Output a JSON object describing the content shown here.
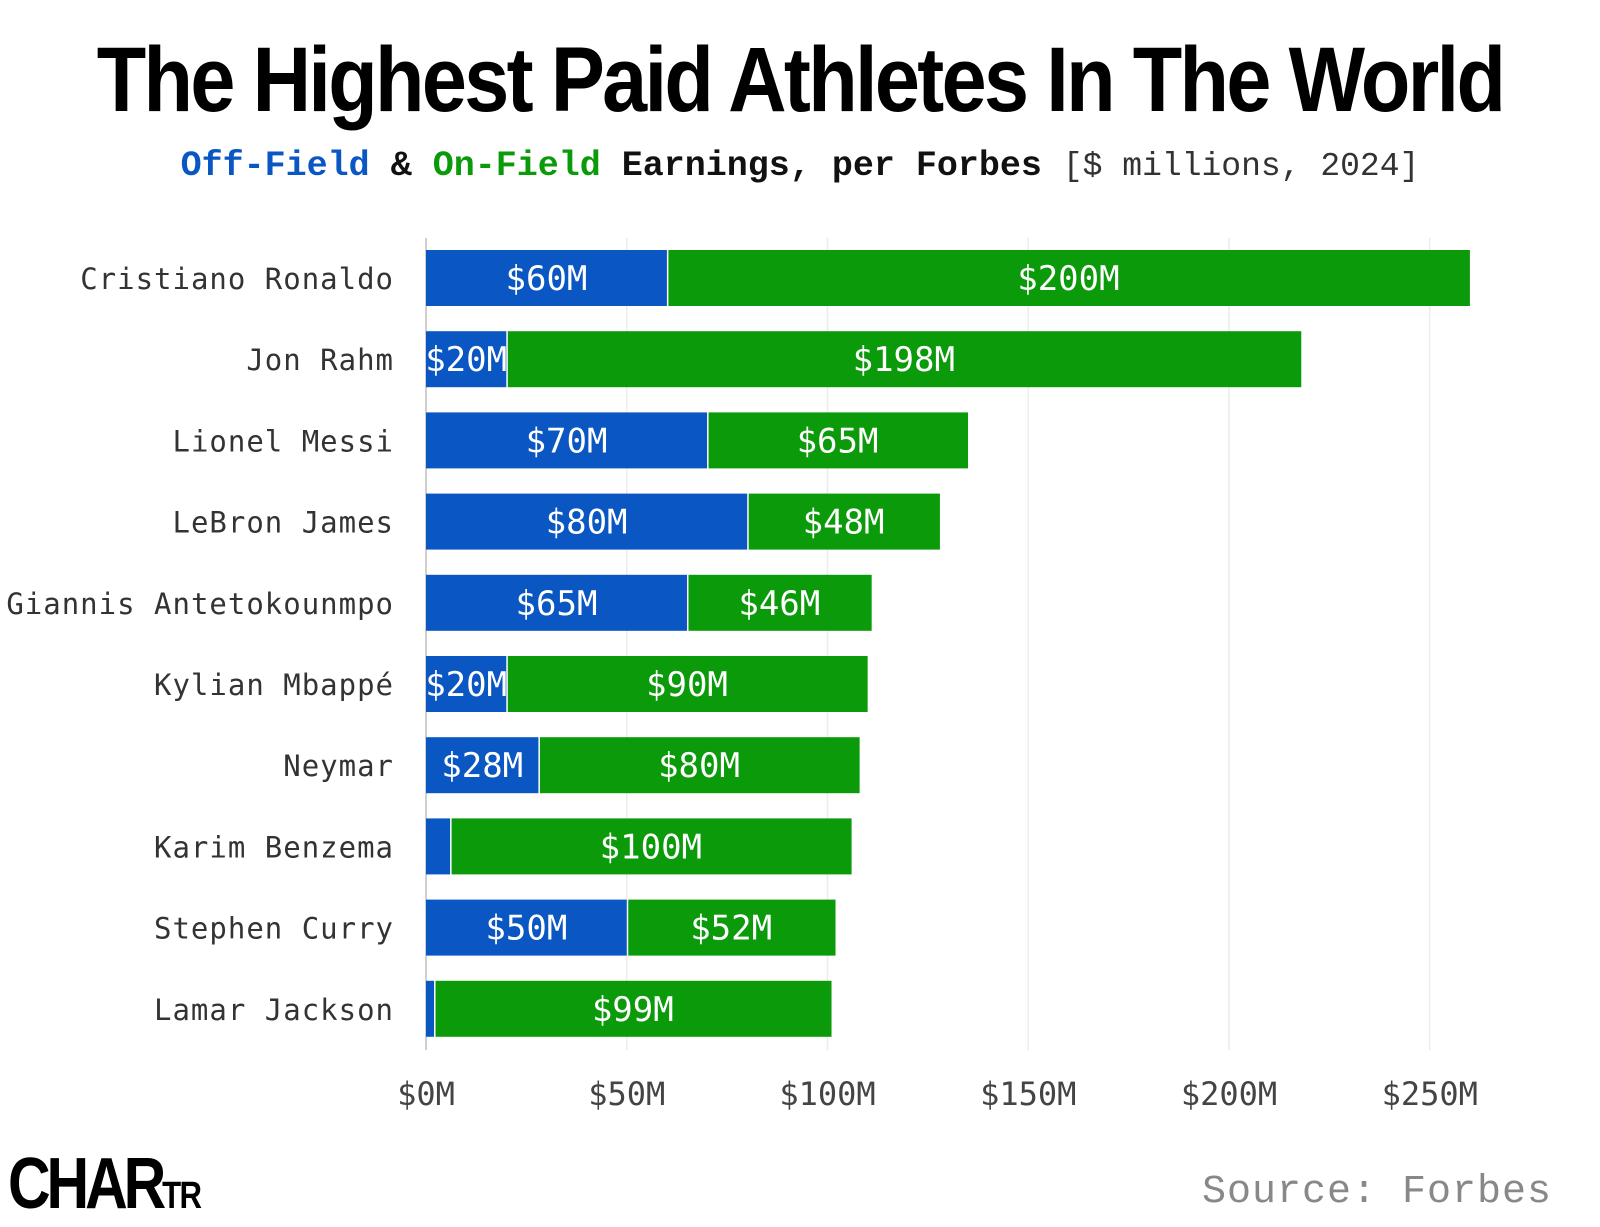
{
  "title": "The Highest Paid Athletes In The World",
  "subtitle": {
    "off_field": "Off-Field",
    "amp": "&",
    "on_field": "On-Field",
    "rest": "Earnings, per Forbes",
    "units": "[$ millions, 2024]"
  },
  "colors": {
    "off_field": "#0a56c2",
    "on_field": "#0a9a0a",
    "grid": "#ececec"
  },
  "chart_data": {
    "type": "bar",
    "orientation": "horizontal",
    "stacked": true,
    "categories": [
      "Cristiano Ronaldo",
      "Jon Rahm",
      "Lionel Messi",
      "LeBron James",
      "Giannis Antetokounmpo",
      "Kylian Mbappé",
      "Neymar",
      "Karim Benzema",
      "Stephen Curry",
      "Lamar Jackson"
    ],
    "series": [
      {
        "name": "Off-Field",
        "values": [
          60,
          20,
          70,
          80,
          65,
          20,
          28,
          6,
          50,
          2
        ],
        "labels": [
          "$60M",
          "$20M",
          "$70M",
          "$80M",
          "$65M",
          "$20M",
          "$28M",
          "",
          "$50M",
          ""
        ]
      },
      {
        "name": "On-Field",
        "values": [
          200,
          198,
          65,
          48,
          46,
          90,
          80,
          100,
          52,
          99
        ],
        "labels": [
          "$200M",
          "$198M",
          "$65M",
          "$48M",
          "$46M",
          "$90M",
          "$80M",
          "$100M",
          "$52M",
          "$99M"
        ]
      }
    ],
    "xlim": [
      0,
      260
    ],
    "xticks": [
      0,
      50,
      100,
      150,
      200,
      250
    ],
    "xtick_labels": [
      "$0M",
      "$50M",
      "$100M",
      "$150M",
      "$200M",
      "$250M"
    ],
    "grid": true
  },
  "footer": {
    "logo_main": "CHAR",
    "logo_small": "TR",
    "source": "Source: Forbes"
  }
}
